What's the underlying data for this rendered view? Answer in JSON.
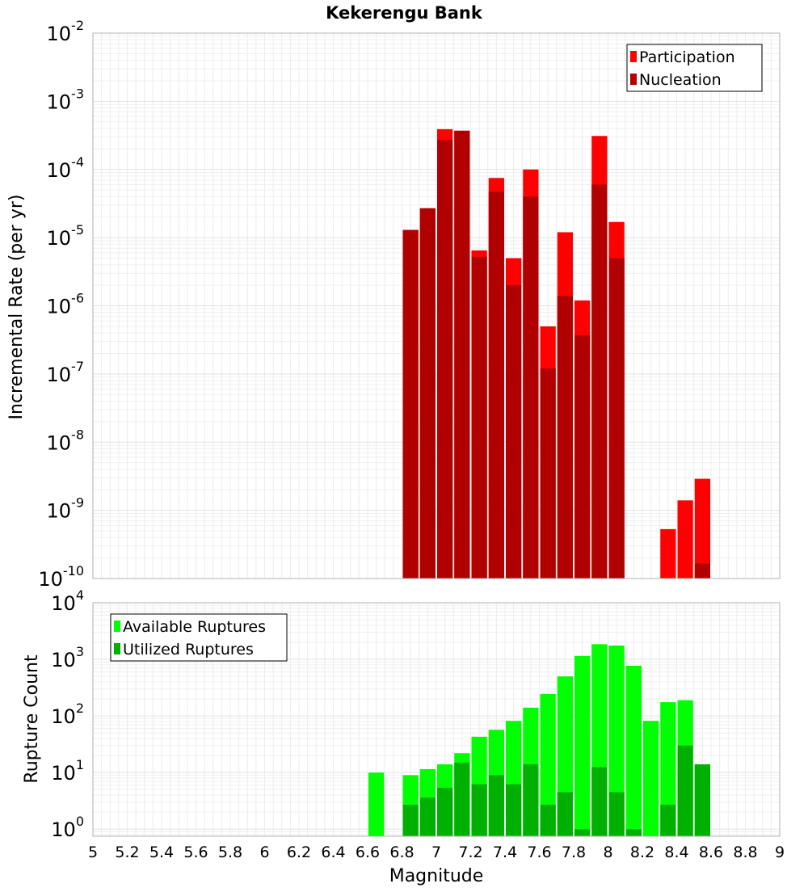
{
  "chart_data": [
    {
      "type": "bar",
      "title": "Kekerengu Bank",
      "xlabel": "",
      "ylabel": "Incremental Rate (per yr)",
      "y_scale": "log",
      "ylim": [
        1e-10,
        0.01
      ],
      "xlim": [
        5,
        9
      ],
      "bin_width": 0.1,
      "grid": true,
      "legend_position": "top-right",
      "y_tick_exponents": [
        "-10",
        "-9",
        "-8",
        "-7",
        "-6",
        "-5",
        "-4",
        "-3",
        "-2"
      ],
      "y_tick_base": "10",
      "series": [
        {
          "name": "Participation",
          "color": "#ff0000",
          "x": [
            6.85,
            6.95,
            7.05,
            7.15,
            7.25,
            7.35,
            7.45,
            7.55,
            7.65,
            7.75,
            7.85,
            7.95,
            8.05,
            8.35,
            8.45,
            8.55
          ],
          "values": [
            1.3e-05,
            2.7e-05,
            0.00039,
            0.00037,
            6.5e-06,
            7.5e-05,
            5e-06,
            0.0001,
            5e-07,
            1.2e-05,
            1.2e-06,
            0.00031,
            1.7e-05,
            5.3e-10,
            1.4e-09,
            2.9e-09
          ]
        },
        {
          "name": "Nucleation",
          "color": "#b00000",
          "x": [
            6.85,
            6.95,
            7.05,
            7.15,
            7.25,
            7.35,
            7.45,
            7.55,
            7.65,
            7.75,
            7.85,
            7.95,
            8.05,
            8.55
          ],
          "values": [
            1.3e-05,
            2.7e-05,
            0.00027,
            0.00037,
            5.2e-06,
            4.7e-05,
            2e-06,
            4e-05,
            1.2e-07,
            1.4e-06,
            3.7e-07,
            6e-05,
            5e-06,
            1.65e-10
          ]
        }
      ]
    },
    {
      "type": "bar",
      "title": "",
      "xlabel": "Magnitude",
      "ylabel": "Rupture Count",
      "y_scale": "log",
      "ylim": [
        0.75,
        10000
      ],
      "xlim": [
        5,
        9
      ],
      "bin_width": 0.1,
      "grid": true,
      "legend_position": "top-left",
      "x_ticks": [
        "5",
        "5.2",
        "5.4",
        "5.6",
        "5.8",
        "6",
        "6.2",
        "6.4",
        "6.6",
        "6.8",
        "7",
        "7.2",
        "7.4",
        "7.6",
        "7.8",
        "8",
        "8.2",
        "8.4",
        "8.6",
        "8.8",
        "9"
      ],
      "y_tick_exponents": [
        "0",
        "1",
        "2",
        "3",
        "4"
      ],
      "y_tick_base": "10",
      "series": [
        {
          "name": "Available Ruptures",
          "color": "#00ff00",
          "x": [
            6.65,
            6.85,
            6.95,
            7.05,
            7.15,
            7.25,
            7.35,
            7.45,
            7.55,
            7.65,
            7.75,
            7.85,
            7.95,
            8.05,
            8.15,
            8.25,
            8.35,
            8.45,
            8.55
          ],
          "values": [
            10,
            9,
            11.5,
            14,
            22,
            43,
            57,
            82,
            140,
            245,
            500,
            1150,
            1850,
            1750,
            770,
            82,
            175,
            190,
            14
          ]
        },
        {
          "name": "Utilized Ruptures",
          "color": "#00b000",
          "x": [
            6.85,
            6.95,
            7.05,
            7.15,
            7.25,
            7.35,
            7.45,
            7.55,
            7.65,
            7.75,
            7.85,
            7.95,
            8.05,
            8.15,
            8.35,
            8.45,
            8.55
          ],
          "values": [
            2.7,
            3.6,
            5.4,
            15,
            6.2,
            9,
            6.2,
            14,
            2.7,
            4.5,
            1,
            12.5,
            4.5,
            1,
            2.7,
            30,
            14
          ]
        }
      ]
    }
  ]
}
